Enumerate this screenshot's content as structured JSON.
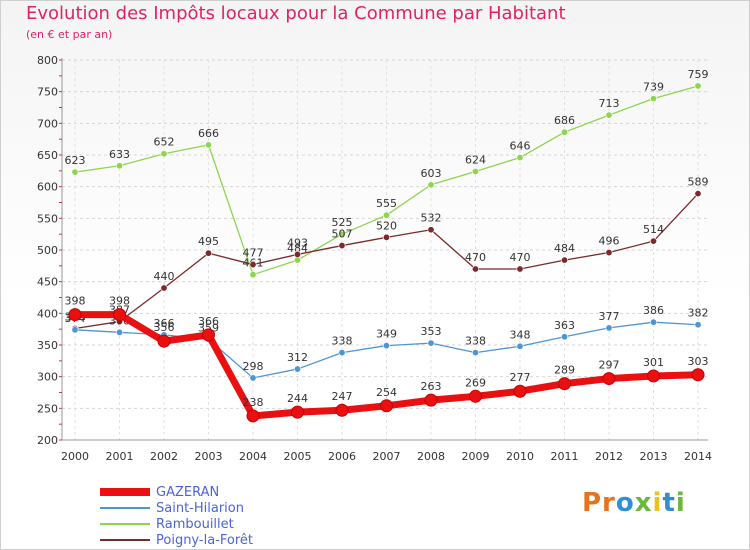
{
  "title": "Evolution des Impôts locaux pour la Commune par Habitant",
  "subtitle": "(en € et par an)",
  "logo": {
    "p": "Pr",
    "o": "o",
    "x": "x",
    "i": "i",
    "t": "t",
    "i2": "i"
  },
  "chart_data": {
    "type": "line",
    "x": [
      "2000",
      "2001",
      "2002",
      "2003",
      "2004",
      "2005",
      "2006",
      "2007",
      "2008",
      "2009",
      "2010",
      "2011",
      "2012",
      "2013",
      "2014"
    ],
    "ylim": [
      200,
      800
    ],
    "yticks": [
      200,
      250,
      300,
      350,
      400,
      450,
      500,
      550,
      600,
      650,
      700,
      750,
      800
    ],
    "grid": true,
    "legend_position": "bottom-left",
    "series": [
      {
        "name": "GAZERAN",
        "color": "#e81010",
        "values": [
          398,
          398,
          356,
          366,
          238,
          244,
          247,
          254,
          263,
          269,
          277,
          289,
          297,
          301,
          303
        ]
      },
      {
        "name": "Saint-Hilarion",
        "color": "#4f94d4",
        "values": [
          374,
          370,
          366,
          359,
          298,
          312,
          338,
          349,
          353,
          338,
          348,
          363,
          377,
          386,
          382
        ]
      },
      {
        "name": "Rambouillet",
        "color": "#8fd44f",
        "values": [
          623,
          633,
          652,
          666,
          461,
          484,
          525,
          555,
          603,
          624,
          646,
          686,
          713,
          739,
          759
        ]
      },
      {
        "name": "Poigny-la-Forêt",
        "color": "#7a2a2a",
        "values": [
          376,
          387,
          440,
          495,
          477,
          493,
          507,
          520,
          532,
          470,
          470,
          484,
          496,
          514,
          589
        ]
      }
    ]
  }
}
